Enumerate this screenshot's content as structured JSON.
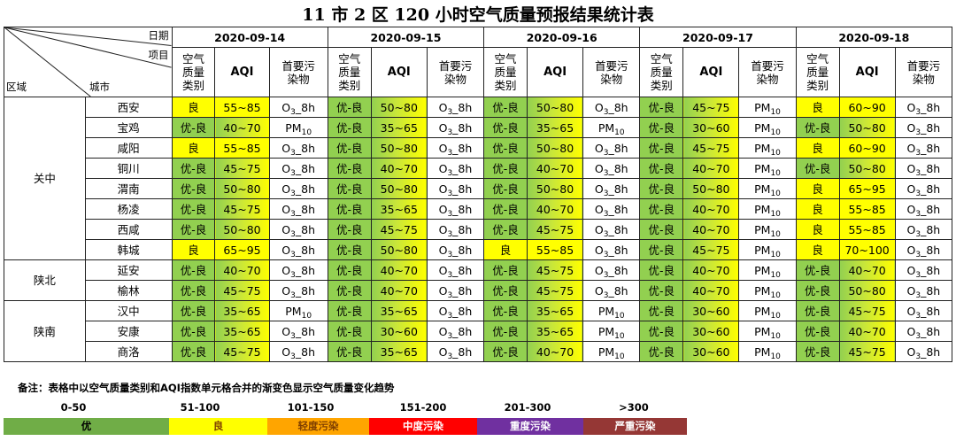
{
  "title": "11 市 2 区 120 小时空气质量预报结果统计表",
  "header": {
    "corner_date": "日期",
    "corner_item": "项目",
    "corner_region": "区域",
    "corner_city": "城市",
    "dates": [
      "2020-09-14",
      "2020-09-15",
      "2020-09-16",
      "2020-09-17",
      "2020-09-18"
    ],
    "col_category": "空气质量类别",
    "col_aqi": "AQI",
    "col_pollutant": "首要污染物"
  },
  "colors": {
    "excellent_good": "#92d050",
    "good": "#ffff00"
  },
  "regions": [
    {
      "name": "关中",
      "rows": 8
    },
    {
      "name": "陕北",
      "rows": 2
    },
    {
      "name": "陕南",
      "rows": 3
    }
  ],
  "rows": [
    {
      "city": "西安",
      "days": [
        {
          "cat": "良",
          "aqi": "55~85",
          "p": "O3",
          "s": "_8h"
        },
        {
          "cat": "优-良",
          "aqi": "50~80",
          "p": "O3",
          "s": "_8h"
        },
        {
          "cat": "优-良",
          "aqi": "50~80",
          "p": "O3",
          "s": "_8h"
        },
        {
          "cat": "优-良",
          "aqi": "45~75",
          "p": "PM",
          "s": "10"
        },
        {
          "cat": "良",
          "aqi": "60~90",
          "p": "O3",
          "s": "_8h"
        }
      ]
    },
    {
      "city": "宝鸡",
      "days": [
        {
          "cat": "优-良",
          "aqi": "40~70",
          "p": "PM",
          "s": "10"
        },
        {
          "cat": "优-良",
          "aqi": "35~65",
          "p": "O3",
          "s": "_8h"
        },
        {
          "cat": "优-良",
          "aqi": "35~65",
          "p": "PM",
          "s": "10"
        },
        {
          "cat": "优-良",
          "aqi": "30~60",
          "p": "PM",
          "s": "10"
        },
        {
          "cat": "优-良",
          "aqi": "50~80",
          "p": "O3",
          "s": "_8h"
        }
      ]
    },
    {
      "city": "咸阳",
      "days": [
        {
          "cat": "良",
          "aqi": "55~85",
          "p": "O3",
          "s": "_8h"
        },
        {
          "cat": "优-良",
          "aqi": "50~80",
          "p": "O3",
          "s": "_8h"
        },
        {
          "cat": "优-良",
          "aqi": "50~80",
          "p": "O3",
          "s": "_8h"
        },
        {
          "cat": "优-良",
          "aqi": "45~75",
          "p": "PM",
          "s": "10"
        },
        {
          "cat": "良",
          "aqi": "60~90",
          "p": "O3",
          "s": "_8h"
        }
      ]
    },
    {
      "city": "铜川",
      "days": [
        {
          "cat": "优-良",
          "aqi": "45~75",
          "p": "O3",
          "s": "_8h"
        },
        {
          "cat": "优-良",
          "aqi": "40~70",
          "p": "O3",
          "s": "_8h"
        },
        {
          "cat": "优-良",
          "aqi": "40~70",
          "p": "O3",
          "s": "_8h"
        },
        {
          "cat": "优-良",
          "aqi": "40~70",
          "p": "PM",
          "s": "10"
        },
        {
          "cat": "优-良",
          "aqi": "50~80",
          "p": "O3",
          "s": "_8h"
        }
      ]
    },
    {
      "city": "渭南",
      "days": [
        {
          "cat": "优-良",
          "aqi": "50~80",
          "p": "O3",
          "s": "_8h"
        },
        {
          "cat": "优-良",
          "aqi": "50~80",
          "p": "O3",
          "s": "_8h"
        },
        {
          "cat": "优-良",
          "aqi": "50~80",
          "p": "O3",
          "s": "_8h"
        },
        {
          "cat": "优-良",
          "aqi": "50~80",
          "p": "PM",
          "s": "10"
        },
        {
          "cat": "良",
          "aqi": "65~95",
          "p": "O3",
          "s": "_8h"
        }
      ]
    },
    {
      "city": "杨凌",
      "days": [
        {
          "cat": "优-良",
          "aqi": "45~75",
          "p": "O3",
          "s": "_8h"
        },
        {
          "cat": "优-良",
          "aqi": "35~65",
          "p": "O3",
          "s": "_8h"
        },
        {
          "cat": "优-良",
          "aqi": "40~70",
          "p": "O3",
          "s": "_8h"
        },
        {
          "cat": "优-良",
          "aqi": "40~70",
          "p": "PM",
          "s": "10"
        },
        {
          "cat": "良",
          "aqi": "55~85",
          "p": "O3",
          "s": "_8h"
        }
      ]
    },
    {
      "city": "西咸",
      "days": [
        {
          "cat": "优-良",
          "aqi": "50~80",
          "p": "O3",
          "s": "_8h"
        },
        {
          "cat": "优-良",
          "aqi": "45~75",
          "p": "O3",
          "s": "_8h"
        },
        {
          "cat": "优-良",
          "aqi": "45~75",
          "p": "O3",
          "s": "_8h"
        },
        {
          "cat": "优-良",
          "aqi": "40~70",
          "p": "PM",
          "s": "10"
        },
        {
          "cat": "良",
          "aqi": "55~85",
          "p": "O3",
          "s": "_8h"
        }
      ]
    },
    {
      "city": "韩城",
      "days": [
        {
          "cat": "良",
          "aqi": "65~95",
          "p": "O3",
          "s": "_8h"
        },
        {
          "cat": "优-良",
          "aqi": "50~80",
          "p": "O3",
          "s": "_8h"
        },
        {
          "cat": "良",
          "aqi": "55~85",
          "p": "O3",
          "s": "_8h"
        },
        {
          "cat": "优-良",
          "aqi": "45~75",
          "p": "PM",
          "s": "10"
        },
        {
          "cat": "良",
          "aqi": "70~100",
          "p": "O3",
          "s": "_8h"
        }
      ]
    },
    {
      "city": "延安",
      "days": [
        {
          "cat": "优-良",
          "aqi": "40~70",
          "p": "O3",
          "s": "_8h"
        },
        {
          "cat": "优-良",
          "aqi": "40~70",
          "p": "O3",
          "s": "_8h"
        },
        {
          "cat": "优-良",
          "aqi": "45~75",
          "p": "O3",
          "s": "_8h"
        },
        {
          "cat": "优-良",
          "aqi": "40~70",
          "p": "PM",
          "s": "10"
        },
        {
          "cat": "优-良",
          "aqi": "40~70",
          "p": "O3",
          "s": "_8h"
        }
      ]
    },
    {
      "city": "榆林",
      "days": [
        {
          "cat": "优-良",
          "aqi": "45~75",
          "p": "O3",
          "s": "_8h"
        },
        {
          "cat": "优-良",
          "aqi": "40~70",
          "p": "O3",
          "s": "_8h"
        },
        {
          "cat": "优-良",
          "aqi": "45~75",
          "p": "O3",
          "s": "_8h"
        },
        {
          "cat": "优-良",
          "aqi": "40~70",
          "p": "PM",
          "s": "10"
        },
        {
          "cat": "优-良",
          "aqi": "50~80",
          "p": "O3",
          "s": "_8h"
        }
      ]
    },
    {
      "city": "汉中",
      "days": [
        {
          "cat": "优-良",
          "aqi": "35~65",
          "p": "PM",
          "s": "10"
        },
        {
          "cat": "优-良",
          "aqi": "35~65",
          "p": "O3",
          "s": "_8h"
        },
        {
          "cat": "优-良",
          "aqi": "35~65",
          "p": "PM",
          "s": "10"
        },
        {
          "cat": "优-良",
          "aqi": "30~60",
          "p": "PM",
          "s": "10"
        },
        {
          "cat": "优-良",
          "aqi": "45~75",
          "p": "O3",
          "s": "_8h"
        }
      ]
    },
    {
      "city": "安康",
      "days": [
        {
          "cat": "优-良",
          "aqi": "35~65",
          "p": "O3",
          "s": "_8h"
        },
        {
          "cat": "优-良",
          "aqi": "30~60",
          "p": "O3",
          "s": "_8h"
        },
        {
          "cat": "优-良",
          "aqi": "35~65",
          "p": "PM",
          "s": "10"
        },
        {
          "cat": "优-良",
          "aqi": "30~60",
          "p": "PM",
          "s": "10"
        },
        {
          "cat": "优-良",
          "aqi": "40~70",
          "p": "O3",
          "s": "_8h"
        }
      ]
    },
    {
      "city": "商洛",
      "days": [
        {
          "cat": "优-良",
          "aqi": "45~75",
          "p": "O3",
          "s": "_8h"
        },
        {
          "cat": "优-良",
          "aqi": "35~65",
          "p": "O3",
          "s": "_8h"
        },
        {
          "cat": "优-良",
          "aqi": "40~70",
          "p": "PM",
          "s": "10"
        },
        {
          "cat": "优-良",
          "aqi": "30~60",
          "p": "PM",
          "s": "10"
        },
        {
          "cat": "优-良",
          "aqi": "45~75",
          "p": "O3",
          "s": "_8h"
        }
      ]
    }
  ],
  "legend": {
    "note": "备注：表格中以空气质量类别和AQI指数单元格合并的渐变色显示空气质量变化趋势",
    "items": [
      {
        "range": "0-50",
        "label": "优",
        "color": "#70ad47"
      },
      {
        "range": "51-100",
        "label": "良",
        "color": "#ffff00"
      },
      {
        "range": "101-150",
        "label": "轻度污染",
        "color": "#ffa500"
      },
      {
        "range": "151-200",
        "label": "中度污染",
        "color": "#ff0000"
      },
      {
        "range": "201-300",
        "label": "重度污染",
        "color": "#7030a0"
      },
      {
        "range": ">300",
        "label": "严重污染",
        "color": "#953735"
      }
    ]
  }
}
